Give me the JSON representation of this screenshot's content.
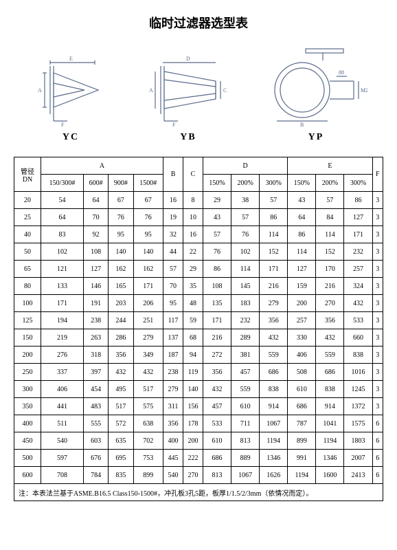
{
  "title": "临时过滤器选型表",
  "diagrams": {
    "yc": {
      "label": "YC"
    },
    "yb": {
      "label": "YB"
    },
    "yp": {
      "label": "YP"
    }
  },
  "table": {
    "header1": {
      "dn": "管径DN",
      "A": "A",
      "B": "B",
      "C": "C",
      "D": "D",
      "E": "E",
      "F": "F"
    },
    "header2": {
      "a1": "150/300#",
      "a2": "600#",
      "a3": "900#",
      "a4": "1500#",
      "d1": "150%",
      "d2": "200%",
      "d3": "300%",
      "e1": "150%",
      "e2": "200%",
      "e3": "300%"
    },
    "rows": [
      {
        "dn": "20",
        "a1": "54",
        "a2": "64",
        "a3": "67",
        "a4": "67",
        "b": "16",
        "c": "8",
        "d1": "29",
        "d2": "38",
        "d3": "57",
        "e1": "43",
        "e2": "57",
        "e3": "86",
        "f": "3"
      },
      {
        "dn": "25",
        "a1": "64",
        "a2": "70",
        "a3": "76",
        "a4": "76",
        "b": "19",
        "c": "10",
        "d1": "43",
        "d2": "57",
        "d3": "86",
        "e1": "64",
        "e2": "84",
        "e3": "127",
        "f": "3"
      },
      {
        "dn": "40",
        "a1": "83",
        "a2": "92",
        "a3": "95",
        "a4": "95",
        "b": "32",
        "c": "16",
        "d1": "57",
        "d2": "76",
        "d3": "114",
        "e1": "86",
        "e2": "114",
        "e3": "171",
        "f": "3"
      },
      {
        "dn": "50",
        "a1": "102",
        "a2": "108",
        "a3": "140",
        "a4": "140",
        "b": "44",
        "c": "22",
        "d1": "76",
        "d2": "102",
        "d3": "152",
        "e1": "114",
        "e2": "152",
        "e3": "232",
        "f": "3"
      },
      {
        "dn": "65",
        "a1": "121",
        "a2": "127",
        "a3": "162",
        "a4": "162",
        "b": "57",
        "c": "29",
        "d1": "86",
        "d2": "114",
        "d3": "171",
        "e1": "127",
        "e2": "170",
        "e3": "257",
        "f": "3"
      },
      {
        "dn": "80",
        "a1": "133",
        "a2": "146",
        "a3": "165",
        "a4": "171",
        "b": "70",
        "c": "35",
        "d1": "108",
        "d2": "145",
        "d3": "216",
        "e1": "159",
        "e2": "216",
        "e3": "324",
        "f": "3"
      },
      {
        "dn": "100",
        "a1": "171",
        "a2": "191",
        "a3": "203",
        "a4": "206",
        "b": "95",
        "c": "48",
        "d1": "135",
        "d2": "183",
        "d3": "279",
        "e1": "200",
        "e2": "270",
        "e3": "432",
        "f": "3"
      },
      {
        "dn": "125",
        "a1": "194",
        "a2": "238",
        "a3": "244",
        "a4": "251",
        "b": "117",
        "c": "59",
        "d1": "171",
        "d2": "232",
        "d3": "356",
        "e1": "257",
        "e2": "356",
        "e3": "533",
        "f": "3"
      },
      {
        "dn": "150",
        "a1": "219",
        "a2": "263",
        "a3": "286",
        "a4": "279",
        "b": "137",
        "c": "68",
        "d1": "216",
        "d2": "289",
        "d3": "432",
        "e1": "330",
        "e2": "432",
        "e3": "660",
        "f": "3"
      },
      {
        "dn": "200",
        "a1": "276",
        "a2": "318",
        "a3": "356",
        "a4": "349",
        "b": "187",
        "c": "94",
        "d1": "272",
        "d2": "381",
        "d3": "559",
        "e1": "406",
        "e2": "559",
        "e3": "838",
        "f": "3"
      },
      {
        "dn": "250",
        "a1": "337",
        "a2": "397",
        "a3": "432",
        "a4": "432",
        "b": "238",
        "c": "119",
        "d1": "356",
        "d2": "457",
        "d3": "686",
        "e1": "508",
        "e2": "686",
        "e3": "1016",
        "f": "3"
      },
      {
        "dn": "300",
        "a1": "406",
        "a2": "454",
        "a3": "495",
        "a4": "517",
        "b": "279",
        "c": "140",
        "d1": "432",
        "d2": "559",
        "d3": "838",
        "e1": "610",
        "e2": "838",
        "e3": "1245",
        "f": "3"
      },
      {
        "dn": "350",
        "a1": "441",
        "a2": "483",
        "a3": "517",
        "a4": "575",
        "b": "311",
        "c": "156",
        "d1": "457",
        "d2": "610",
        "d3": "914",
        "e1": "686",
        "e2": "914",
        "e3": "1372",
        "f": "3"
      },
      {
        "dn": "400",
        "a1": "511",
        "a2": "555",
        "a3": "572",
        "a4": "638",
        "b": "356",
        "c": "178",
        "d1": "533",
        "d2": "711",
        "d3": "1067",
        "e1": "787",
        "e2": "1041",
        "e3": "1575",
        "f": "6"
      },
      {
        "dn": "450",
        "a1": "540",
        "a2": "603",
        "a3": "635",
        "a4": "702",
        "b": "400",
        "c": "200",
        "d1": "610",
        "d2": "813",
        "d3": "1194",
        "e1": "899",
        "e2": "1194",
        "e3": "1803",
        "f": "6"
      },
      {
        "dn": "500",
        "a1": "597",
        "a2": "676",
        "a3": "695",
        "a4": "753",
        "b": "445",
        "c": "222",
        "d1": "686",
        "d2": "889",
        "d3": "1346",
        "e1": "991",
        "e2": "1346",
        "e3": "2007",
        "f": "6"
      },
      {
        "dn": "600",
        "a1": "708",
        "a2": "784",
        "a3": "835",
        "a4": "899",
        "b": "540",
        "c": "270",
        "d1": "813",
        "d2": "1067",
        "d3": "1626",
        "e1": "1194",
        "e2": "1600",
        "e3": "2413",
        "f": "6"
      }
    ],
    "footnote": "注：本表法兰基于ASME.B16.5 Class150-1500#，冲孔板3孔5距，板厚1/1.5/2/3mm（依情况而定）。"
  }
}
